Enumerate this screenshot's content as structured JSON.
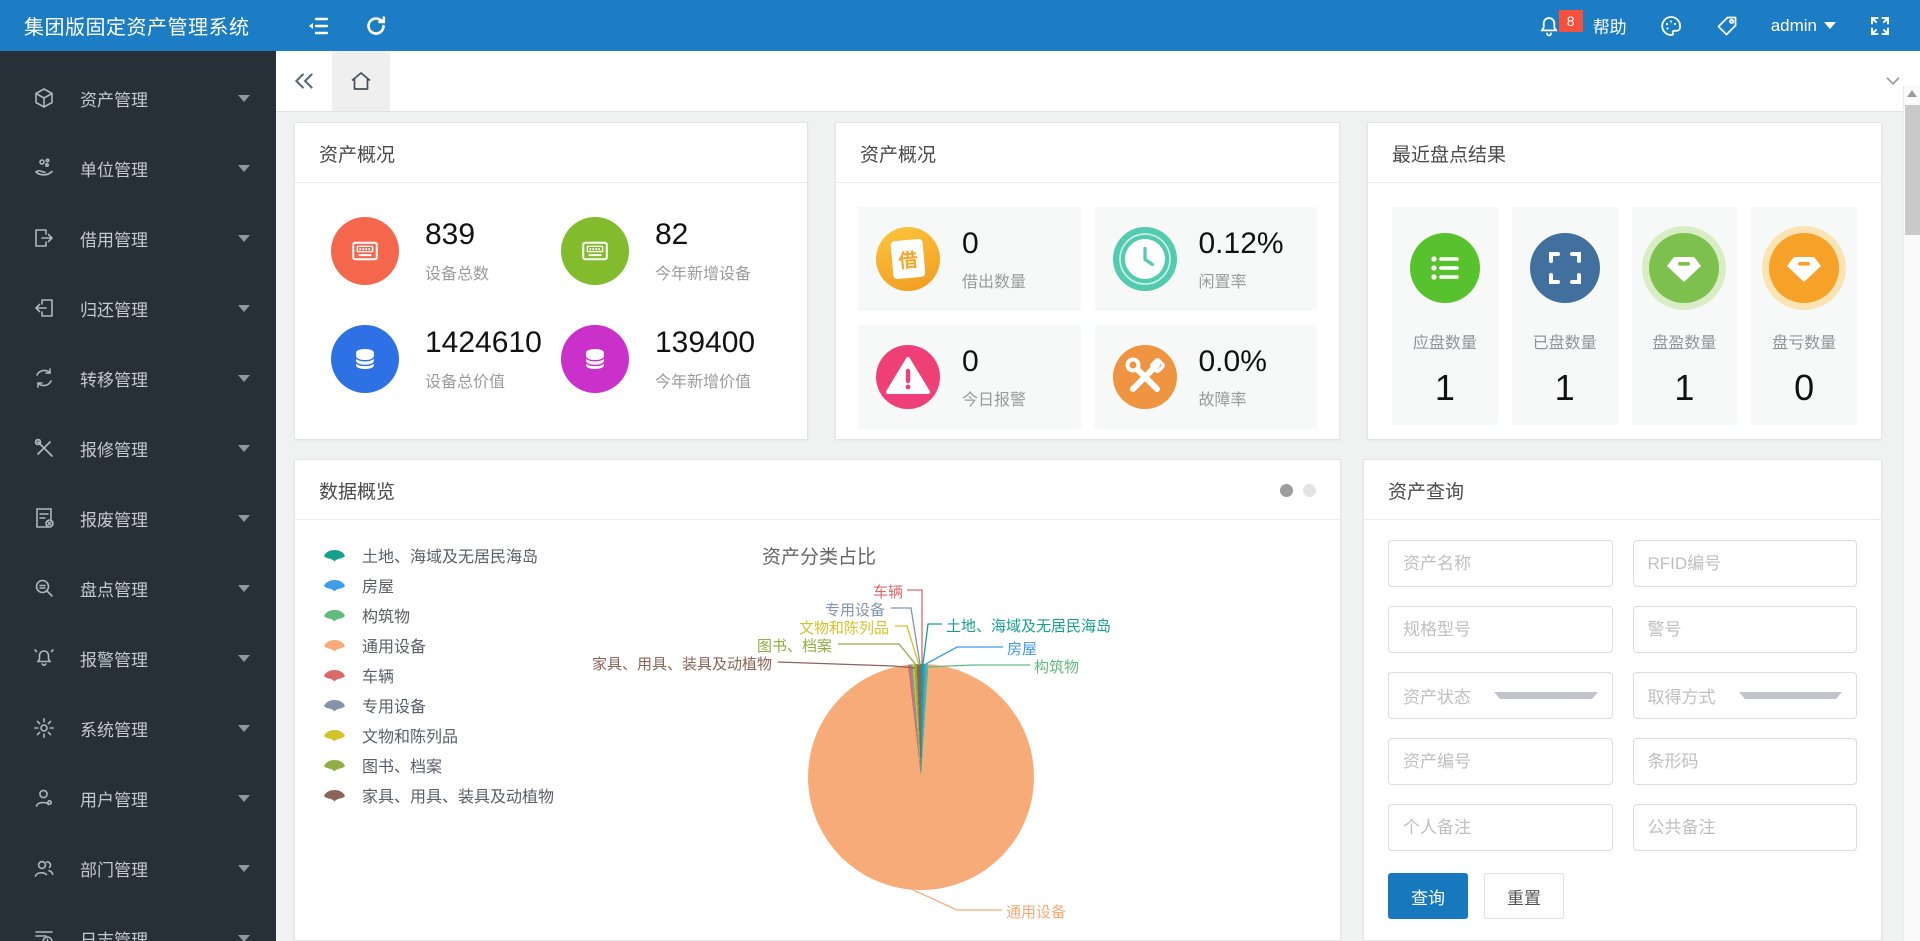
{
  "topbar": {
    "title": "集团版固定资产管理系统",
    "notification_count": "8",
    "help_label": "帮助",
    "username": "admin"
  },
  "sidebar": {
    "items": [
      "资产管理",
      "单位管理",
      "借用管理",
      "归还管理",
      "转移管理",
      "报修管理",
      "报废管理",
      "盘点管理",
      "报警管理",
      "系统管理",
      "用户管理",
      "部门管理",
      "日志管理"
    ]
  },
  "cards": {
    "asset_overview_1": {
      "title": "资产概况",
      "stats": [
        {
          "value": "839",
          "label": "设备总数",
          "color": "#f4674d"
        },
        {
          "value": "82",
          "label": "今年新增设备",
          "color": "#82bb2c"
        },
        {
          "value": "1424610",
          "label": "设备总价值",
          "color": "#2e71e5"
        },
        {
          "value": "139400",
          "label": "今年新增价值",
          "color": "#ca30ca"
        }
      ]
    },
    "asset_overview_2": {
      "title": "资产概况",
      "borrow_glyph": "借",
      "stats": [
        {
          "value": "0",
          "label": "借出数量",
          "color": "#f5a623"
        },
        {
          "value": "0.12%",
          "label": "闲置率",
          "color": "#52cbb0"
        },
        {
          "value": "0",
          "label": "今日报警",
          "color": "#ee3f76"
        },
        {
          "value": "0.0%",
          "label": "故障率",
          "color": "#ef9440"
        }
      ]
    },
    "inventory_result": {
      "title": "最近盘点结果",
      "stats": [
        {
          "label": "应盘数量",
          "value": "1",
          "color": "#58c22e"
        },
        {
          "label": "已盘数量",
          "value": "1",
          "color": "#41709f"
        },
        {
          "label": "盘盈数量",
          "value": "1",
          "color": "#7dc04e"
        },
        {
          "label": "盘亏数量",
          "value": "0",
          "color": "#f6a229"
        }
      ]
    },
    "data_overview": {
      "title": "数据概览"
    },
    "asset_query": {
      "title": "资产查询",
      "fields": [
        {
          "placeholder": "资产名称",
          "type": "input"
        },
        {
          "placeholder": "RFID编号",
          "type": "input"
        },
        {
          "placeholder": "规格型号",
          "type": "input"
        },
        {
          "placeholder": "警号",
          "type": "input"
        },
        {
          "placeholder": "资产状态",
          "type": "select"
        },
        {
          "placeholder": "取得方式",
          "type": "select"
        },
        {
          "placeholder": "资产编号",
          "type": "input"
        },
        {
          "placeholder": "条形码",
          "type": "input"
        },
        {
          "placeholder": "个人备注",
          "type": "input"
        },
        {
          "placeholder": "公共备注",
          "type": "input"
        }
      ],
      "query_button": "查询",
      "reset_button": "重置"
    }
  },
  "chart_data": {
    "type": "pie",
    "title": "资产分类占比",
    "legend_position": "left",
    "slices": [
      {
        "label": "土地、海域及无居民海岛",
        "color": "#17a08c",
        "value_est_pct": 0.4
      },
      {
        "label": "房屋",
        "color": "#3f9ce8",
        "value_est_pct": 0.35
      },
      {
        "label": "构筑物",
        "color": "#63ba7d",
        "value_est_pct": 0.3
      },
      {
        "label": "通用设备",
        "color": "#f7ab79",
        "value_est_pct": 97.1
      },
      {
        "label": "车辆",
        "color": "#d96a6a",
        "value_est_pct": 0.3
      },
      {
        "label": "专用设备",
        "color": "#8493ab",
        "value_est_pct": 0.35
      },
      {
        "label": "文物和陈列品",
        "color": "#d3c32a",
        "value_est_pct": 0.25
      },
      {
        "label": "图书、档案",
        "color": "#91ad45",
        "value_est_pct": 0.35
      },
      {
        "label": "家具、用具、装具及动植物",
        "color": "#8c6358",
        "value_est_pct": 0.6
      }
    ]
  }
}
